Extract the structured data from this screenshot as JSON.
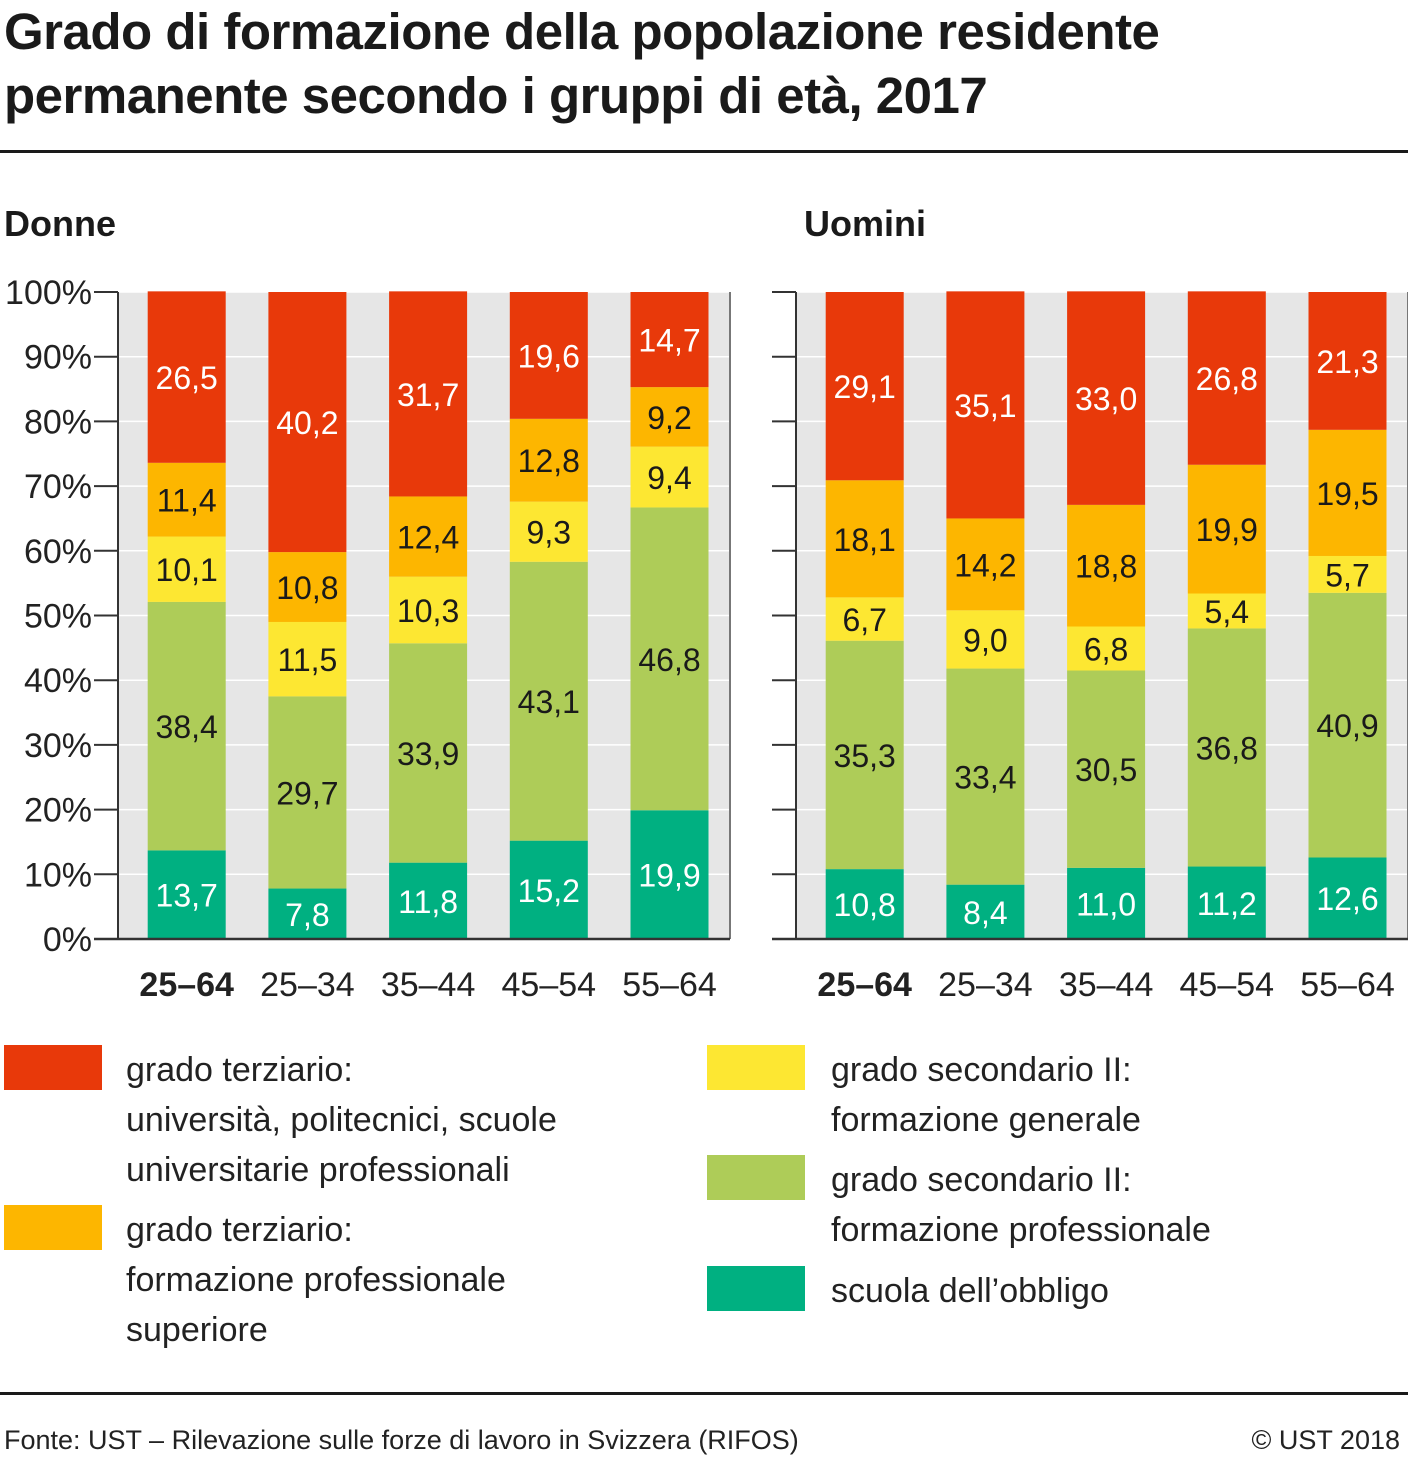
{
  "header": {
    "title_line1": "Grado di formazione della popolazione residente",
    "title_line2": "permanente secondo i gruppi di età, 2017"
  },
  "chart_data": {
    "type": "bar",
    "stacked": true,
    "ylim": [
      0,
      100
    ],
    "y_ticks": [
      "0%",
      "10%",
      "20%",
      "30%",
      "40%",
      "50%",
      "60%",
      "70%",
      "80%",
      "90%",
      "100%"
    ],
    "categories": [
      "25–64",
      "25–34",
      "35–44",
      "45–54",
      "55–64"
    ],
    "highlight_category": "25–64",
    "colors": {
      "obbligo": "#00b081",
      "sec_prof": "#aecc58",
      "sec_gen": "#fde732",
      "terz_prof": "#fdb600",
      "terz_univ": "#e8390a"
    },
    "panels": [
      {
        "title": "Donne",
        "series": [
          {
            "key": "obbligo",
            "values": [
              13.7,
              7.8,
              11.8,
              15.2,
              19.9
            ],
            "labels": [
              "13,7",
              "7,8",
              "11,8",
              "15,2",
              "19,9"
            ]
          },
          {
            "key": "sec_prof",
            "values": [
              38.4,
              29.7,
              33.9,
              43.1,
              46.8
            ],
            "labels": [
              "38,4",
              "29,7",
              "33,9",
              "43,1",
              "46,8"
            ]
          },
          {
            "key": "sec_gen",
            "values": [
              10.1,
              11.5,
              10.3,
              9.3,
              9.4
            ],
            "labels": [
              "10,1",
              "11,5",
              "10,3",
              "9,3",
              "9,4"
            ]
          },
          {
            "key": "terz_prof",
            "values": [
              11.4,
              10.8,
              12.4,
              12.8,
              9.2
            ],
            "labels": [
              "11,4",
              "10,8",
              "12,4",
              "12,8",
              "9,2"
            ]
          },
          {
            "key": "terz_univ",
            "values": [
              26.5,
              40.2,
              31.7,
              19.6,
              14.7
            ],
            "labels": [
              "26,5",
              "40,2",
              "31,7",
              "19,6",
              "14,7"
            ]
          }
        ]
      },
      {
        "title": "Uomini",
        "series": [
          {
            "key": "obbligo",
            "values": [
              10.8,
              8.4,
              11.0,
              11.2,
              12.6
            ],
            "labels": [
              "10,8",
              "8,4",
              "11,0",
              "11,2",
              "12,6"
            ]
          },
          {
            "key": "sec_prof",
            "values": [
              35.3,
              33.4,
              30.5,
              36.8,
              40.9
            ],
            "labels": [
              "35,3",
              "33,4",
              "30,5",
              "36,8",
              "40,9"
            ]
          },
          {
            "key": "sec_gen",
            "values": [
              6.7,
              9.0,
              6.8,
              5.4,
              5.7
            ],
            "labels": [
              "6,7",
              "9,0",
              "6,8",
              "5,4",
              "5,7"
            ]
          },
          {
            "key": "terz_prof",
            "values": [
              18.1,
              14.2,
              18.8,
              19.9,
              19.5
            ],
            "labels": [
              "18,1",
              "14,2",
              "18,8",
              "19,9",
              "19,5"
            ]
          },
          {
            "key": "terz_univ",
            "values": [
              29.1,
              35.1,
              33.0,
              26.8,
              21.3
            ],
            "labels": [
              "29,1",
              "35,1",
              "33,0",
              "26,8",
              "21,3"
            ]
          }
        ]
      }
    ],
    "legend": [
      {
        "key": "terz_univ",
        "lines": [
          "grado terziario:",
          "università, politecnici, scuole",
          "universitarie professionali"
        ]
      },
      {
        "key": "terz_prof",
        "lines": [
          "grado terziario:",
          "formazione professionale",
          "superiore"
        ]
      },
      {
        "key": "sec_gen",
        "lines": [
          "grado secondario II:",
          "formazione generale"
        ]
      },
      {
        "key": "sec_prof",
        "lines": [
          "grado secondario II:",
          "formazione professionale"
        ]
      },
      {
        "key": "obbligo",
        "lines": [
          "scuola dell’obbligo"
        ]
      }
    ]
  },
  "footer": {
    "source": "Fonte: UST – Rilevazione sulle forze di lavoro in Svizzera (RIFOS)",
    "copyright": "© UST 2018"
  }
}
